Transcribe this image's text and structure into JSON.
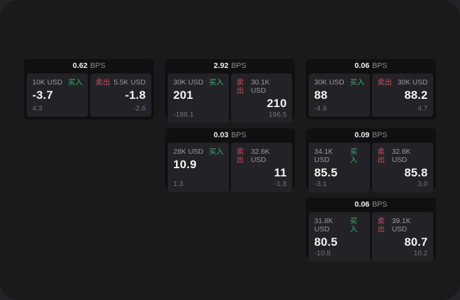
{
  "labels": {
    "bps_unit": "BPS",
    "buy": "买入",
    "sell": "卖出"
  },
  "colors": {
    "buy_green": "#3cae73",
    "sell_red": "#cb4e60",
    "card_bg": "#101013",
    "panel_bg": "#232327",
    "page_bg": "#1a1a1c"
  },
  "cards": [
    {
      "bps": "0.62",
      "buy": {
        "amount": "10K USD",
        "value": "-3.7",
        "sub": "4.3"
      },
      "sell": {
        "amount": "5.5K USD",
        "value": "-1.8",
        "sub": "-2.6"
      }
    },
    {
      "bps": "2.92",
      "buy": {
        "amount": "30K USD",
        "value": "201",
        "sub": "-188.1"
      },
      "sell": {
        "amount": "30.1K USD",
        "value": "210",
        "sub": "196.5"
      }
    },
    {
      "bps": "0.06",
      "buy": {
        "amount": "30K USD",
        "value": "88",
        "sub": "-4.9"
      },
      "sell": {
        "amount": "30K USD",
        "value": "88.2",
        "sub": "4.7"
      }
    },
    {
      "bps": "0.03",
      "buy": {
        "amount": "28K USD",
        "value": "10.9",
        "sub": "1.3"
      },
      "sell": {
        "amount": "32.6K USD",
        "value": "11",
        "sub": "-1.8"
      }
    },
    {
      "bps": "0.09",
      "buy": {
        "amount": "34.1K USD",
        "value": "85.5",
        "sub": "-3.1"
      },
      "sell": {
        "amount": "32.8K USD",
        "value": "85.8",
        "sub": "3.0"
      }
    },
    {
      "bps": "0.06",
      "buy": {
        "amount": "31.8K USD",
        "value": "80.5",
        "sub": "-10.8"
      },
      "sell": {
        "amount": "39.1K USD",
        "value": "80.7",
        "sub": "10.2"
      }
    }
  ]
}
